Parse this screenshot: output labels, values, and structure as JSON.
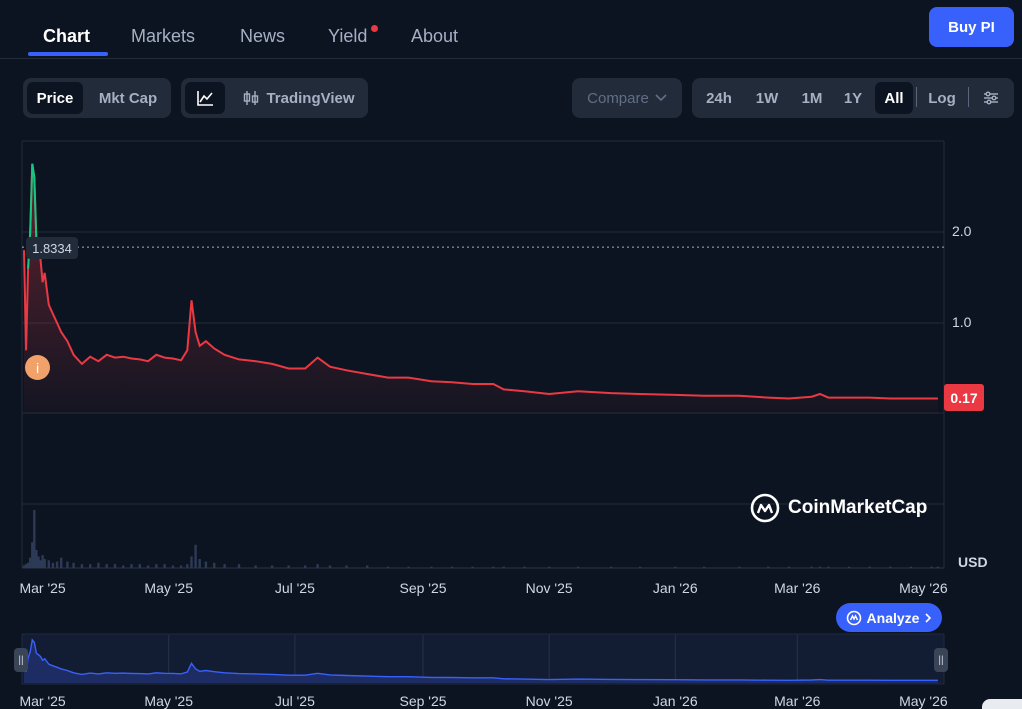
{
  "nav": {
    "tabs": [
      {
        "label": "Chart"
      },
      {
        "label": "Markets"
      },
      {
        "label": "News"
      },
      {
        "label": "Yield"
      },
      {
        "label": "About"
      }
    ],
    "active": "Chart",
    "buy_label": "Buy PI"
  },
  "toolbar": {
    "price_label": "Price",
    "mktcap_label": "Mkt Cap",
    "tradingview_label": "TradingView",
    "compare_label": "Compare",
    "ranges": [
      "24h",
      "1W",
      "1M",
      "1Y",
      "All"
    ],
    "active_range": "All",
    "log_label": "Log"
  },
  "chart": {
    "hover_price": "1.8334",
    "last_price": "0.17",
    "currency": "USD",
    "watermark": "CoinMarketCap",
    "analyze_label": "Analyze",
    "info_label": "i"
  },
  "colors": {
    "accent": "#3861fb",
    "down": "#ea3943",
    "up": "#16c784",
    "background": "#0d1421"
  },
  "chart_data": {
    "type": "line",
    "title": "",
    "xlabel": "",
    "ylabel": "USD",
    "x_ticks": [
      "Mar '25",
      "May '25",
      "Jul '25",
      "Sep '25",
      "Nov '25",
      "Jan '26",
      "Mar '26",
      "May '26"
    ],
    "y_ticks": [
      2.0,
      1.0
    ],
    "ylim": [
      -2.0,
      3.0
    ],
    "grid": true,
    "series": [
      {
        "x": [
          "2025-02-20",
          "2025-02-21",
          "2025-02-22",
          "2025-02-23",
          "2025-02-24",
          "2025-02-25",
          "2025-02-26",
          "2025-02-27",
          "2025-02-28",
          "2025-03-01",
          "2025-03-02",
          "2025-03-04",
          "2025-03-06",
          "2025-03-08",
          "2025-03-10",
          "2025-03-13",
          "2025-03-16",
          "2025-03-20",
          "2025-03-24",
          "2025-03-28",
          "2025-04-01",
          "2025-04-05",
          "2025-04-09",
          "2025-04-13",
          "2025-04-17",
          "2025-04-21",
          "2025-04-25",
          "2025-04-29",
          "2025-05-03",
          "2025-05-07",
          "2025-05-10",
          "2025-05-12",
          "2025-05-14",
          "2025-05-16",
          "2025-05-19",
          "2025-05-23",
          "2025-05-28",
          "2025-06-04",
          "2025-06-12",
          "2025-06-20",
          "2025-06-28",
          "2025-07-06",
          "2025-07-12",
          "2025-07-18",
          "2025-07-26",
          "2025-08-05",
          "2025-08-15",
          "2025-08-25",
          "2025-09-05",
          "2025-09-15",
          "2025-09-25",
          "2025-10-05",
          "2025-10-10",
          "2025-10-20",
          "2025-11-01",
          "2025-11-15",
          "2025-12-01",
          "2025-12-15",
          "2026-01-01",
          "2026-01-15",
          "2026-02-01",
          "2026-02-15",
          "2026-02-25",
          "2026-03-08",
          "2026-03-12",
          "2026-03-16",
          "2026-03-26",
          "2026-04-05",
          "2026-04-15",
          "2026-04-25",
          "2026-05-05",
          "2026-05-08"
        ],
        "y": [
          1.8,
          0.7,
          1.6,
          2.0,
          2.75,
          2.6,
          1.9,
          1.8,
          1.7,
          1.45,
          1.55,
          1.2,
          1.1,
          1.0,
          0.9,
          0.8,
          0.65,
          0.55,
          0.63,
          0.58,
          0.65,
          0.62,
          0.63,
          0.61,
          0.6,
          0.58,
          0.65,
          0.62,
          0.61,
          0.59,
          0.7,
          1.25,
          0.9,
          0.75,
          0.8,
          0.72,
          0.65,
          0.6,
          0.58,
          0.55,
          0.5,
          0.5,
          0.62,
          0.52,
          0.48,
          0.44,
          0.4,
          0.4,
          0.36,
          0.35,
          0.33,
          0.33,
          0.27,
          0.25,
          0.22,
          0.25,
          0.23,
          0.22,
          0.21,
          0.2,
          0.2,
          0.18,
          0.17,
          0.19,
          0.22,
          0.18,
          0.18,
          0.18,
          0.17,
          0.17,
          0.17,
          0.17
        ]
      }
    ],
    "volume": [
      2,
      3,
      4,
      8,
      20,
      45,
      14,
      9,
      6,
      10,
      7,
      6,
      4,
      5,
      8,
      5,
      4,
      3,
      3,
      4,
      3,
      3,
      2,
      3,
      3,
      2,
      3,
      3,
      2,
      2,
      3,
      9,
      18,
      7,
      5,
      4,
      3,
      3,
      2,
      2,
      2,
      2,
      3,
      2,
      2,
      2,
      1,
      1,
      1,
      1,
      1,
      1,
      1,
      1,
      1,
      1,
      1,
      1,
      1,
      1,
      1,
      1,
      1,
      1,
      1,
      1,
      1,
      1,
      1,
      1,
      1,
      1
    ]
  }
}
